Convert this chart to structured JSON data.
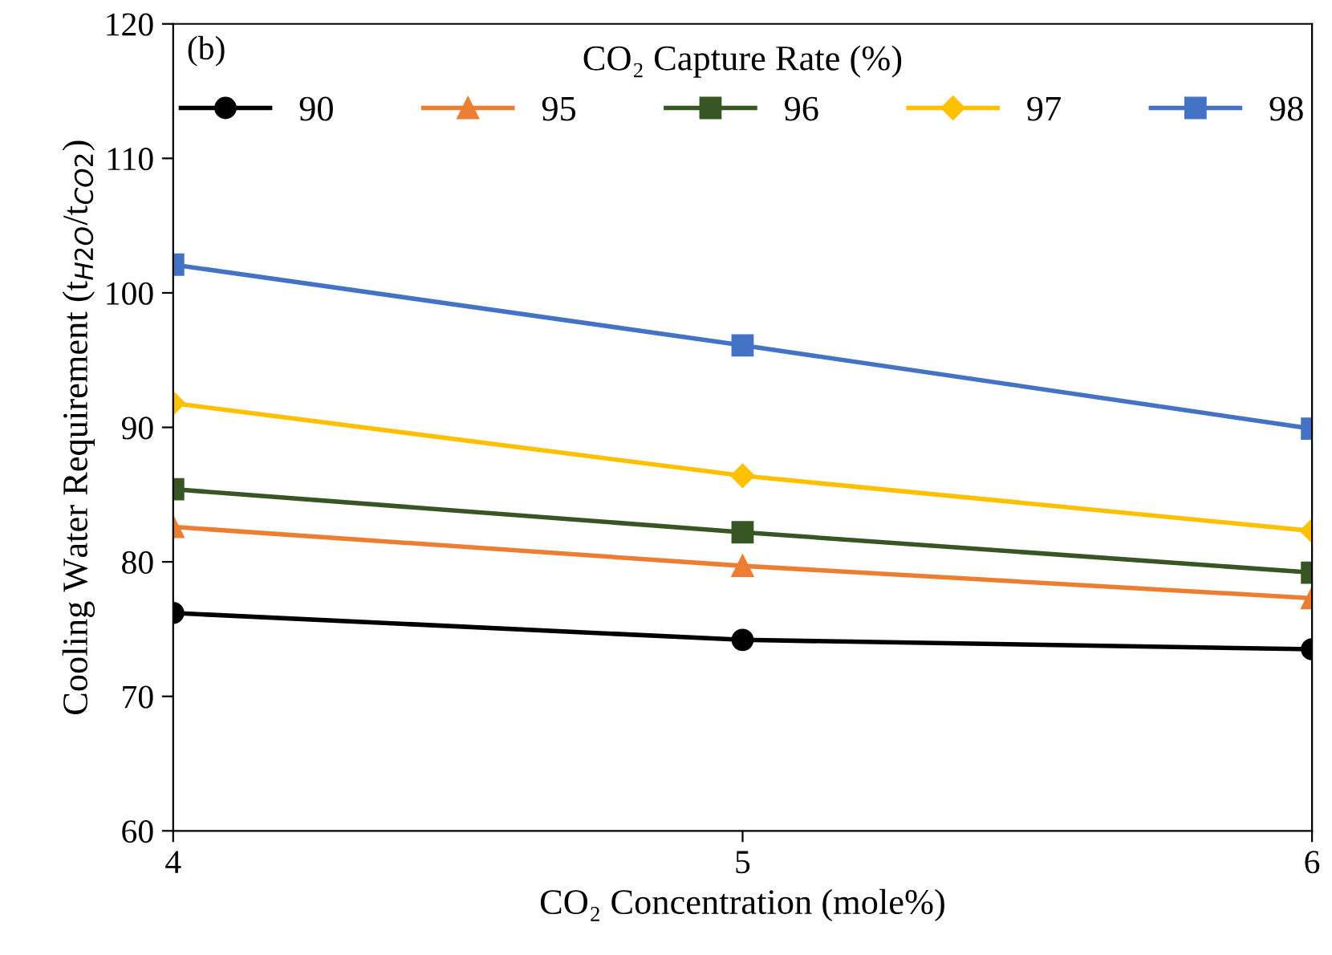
{
  "chart_data": {
    "type": "line",
    "xlabel": "CO₂ Concentration (mole%)",
    "ylabel": "Cooling Water Requirement (t$_{H2O}$/t$_{CO2}$)",
    "legend_title": "CO₂ Capture Rate (%)",
    "legend": "top",
    "grid": false,
    "annotations": [
      "(b)"
    ],
    "x": [
      4,
      5,
      6
    ],
    "xlim": [
      4,
      6
    ],
    "xticks": [
      4,
      5,
      6
    ],
    "ylim": [
      60,
      120
    ],
    "yticks": [
      60,
      70,
      80,
      90,
      100,
      110,
      120
    ],
    "series": [
      {
        "name": "90",
        "color": "#000000",
        "marker": "circle",
        "values": [
          76.2,
          74.2,
          73.5
        ]
      },
      {
        "name": "95",
        "color": "#ed7d31",
        "marker": "triangle",
        "values": [
          82.6,
          79.7,
          77.3
        ]
      },
      {
        "name": "96",
        "color": "#375623",
        "marker": "square",
        "values": [
          85.4,
          82.2,
          79.2
        ]
      },
      {
        "name": "97",
        "color": "#ffc000",
        "marker": "diamond",
        "values": [
          91.8,
          86.4,
          82.3
        ]
      },
      {
        "name": "98",
        "color": "#4472c4",
        "marker": "square",
        "values": [
          102.1,
          96.1,
          89.9
        ]
      }
    ]
  }
}
